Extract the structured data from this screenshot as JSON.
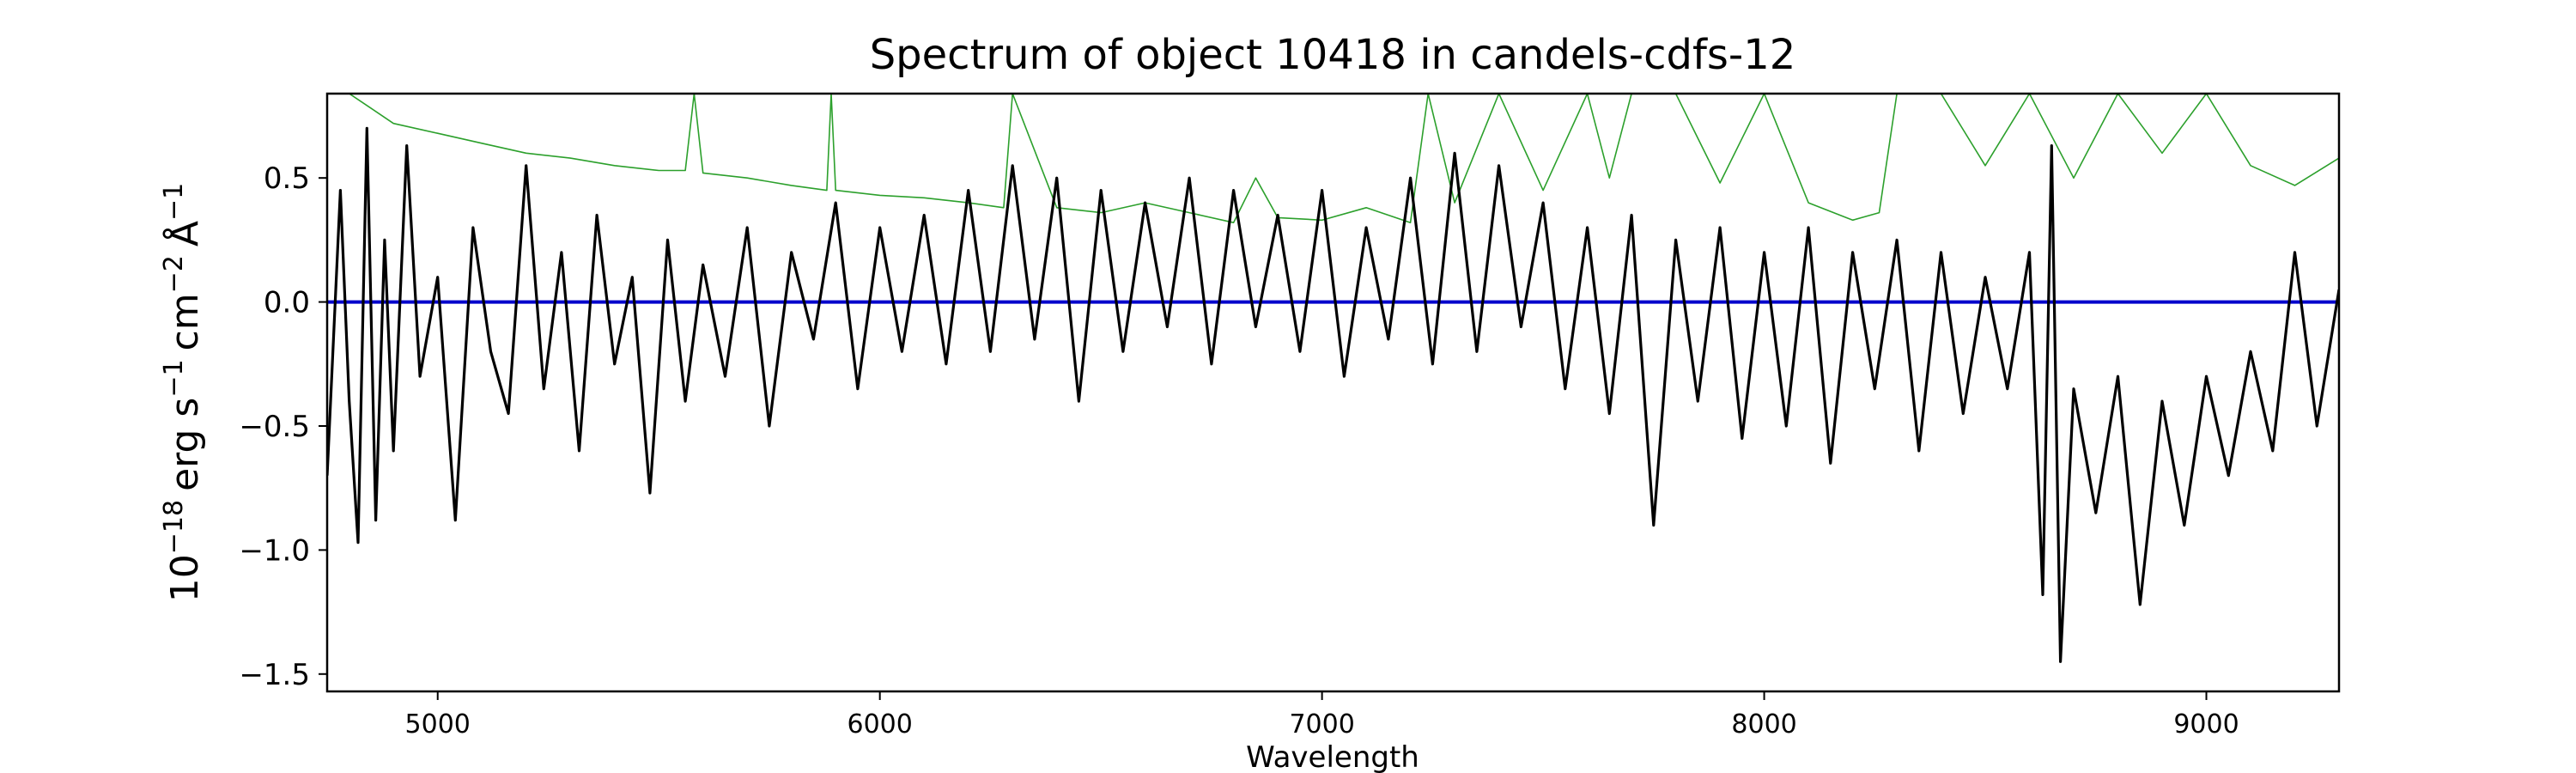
{
  "chart_data": {
    "type": "line",
    "title": "Spectrum of object 10418 in candels-cdfs-12",
    "xlabel": "Wavelength",
    "ylabel": {
      "base": "10",
      "exp": "−18",
      "unit_erg": "erg s",
      "exp_s": "−1",
      "unit_cm": "cm",
      "exp_cm": "−2",
      "unit_a": "Å",
      "exp_a": "−1"
    },
    "xlim": [
      4750,
      9300
    ],
    "ylim": [
      -1.57,
      0.84
    ],
    "xticks": [
      5000,
      6000,
      7000,
      8000,
      9000
    ],
    "xtick_labels": [
      "5000",
      "6000",
      "7000",
      "8000",
      "9000"
    ],
    "yticks": [
      -1.5,
      -1.0,
      -0.5,
      0.0,
      0.5
    ],
    "ytick_labels": [
      "−1.5",
      "−1.0",
      "−0.5",
      "0.0",
      "0.5"
    ],
    "grid": false,
    "colors": {
      "flux": "#000000",
      "error": "#2ca02c",
      "zero": "#0000cc"
    },
    "series": [
      {
        "role": "flux",
        "x": [
          4750,
          4780,
          4800,
          4820,
          4840,
          4860,
          4880,
          4900,
          4930,
          4960,
          5000,
          5040,
          5080,
          5120,
          5160,
          5200,
          5240,
          5280,
          5320,
          5360,
          5400,
          5440,
          5480,
          5520,
          5560,
          5600,
          5650,
          5700,
          5750,
          5800,
          5850,
          5900,
          5950,
          6000,
          6050,
          6100,
          6150,
          6200,
          6250,
          6300,
          6350,
          6400,
          6450,
          6500,
          6550,
          6600,
          6650,
          6700,
          6750,
          6800,
          6850,
          6900,
          6950,
          7000,
          7050,
          7100,
          7150,
          7200,
          7250,
          7300,
          7350,
          7400,
          7450,
          7500,
          7550,
          7600,
          7650,
          7700,
          7750,
          7800,
          7850,
          7900,
          7950,
          8000,
          8050,
          8100,
          8150,
          8200,
          8250,
          8300,
          8350,
          8400,
          8450,
          8500,
          8550,
          8600,
          8630,
          8650,
          8670,
          8700,
          8750,
          8800,
          8850,
          8900,
          8950,
          9000,
          9050,
          9100,
          9150,
          9200,
          9250,
          9300
        ],
        "y": [
          -0.7,
          0.45,
          -0.4,
          -0.97,
          0.7,
          -0.88,
          0.25,
          -0.6,
          0.63,
          -0.3,
          0.1,
          -0.88,
          0.3,
          -0.2,
          -0.45,
          0.55,
          -0.35,
          0.2,
          -0.6,
          0.35,
          -0.25,
          0.1,
          -0.77,
          0.25,
          -0.4,
          0.15,
          -0.3,
          0.3,
          -0.5,
          0.2,
          -0.15,
          0.4,
          -0.35,
          0.3,
          -0.2,
          0.35,
          -0.25,
          0.45,
          -0.2,
          0.55,
          -0.15,
          0.5,
          -0.4,
          0.45,
          -0.2,
          0.4,
          -0.1,
          0.5,
          -0.25,
          0.45,
          -0.1,
          0.35,
          -0.2,
          0.45,
          -0.3,
          0.3,
          -0.15,
          0.5,
          -0.25,
          0.6,
          -0.2,
          0.55,
          -0.1,
          0.4,
          -0.35,
          0.3,
          -0.45,
          0.35,
          -0.9,
          0.25,
          -0.4,
          0.3,
          -0.55,
          0.2,
          -0.5,
          0.3,
          -0.65,
          0.2,
          -0.35,
          0.25,
          -0.6,
          0.2,
          -0.45,
          0.1,
          -0.35,
          0.2,
          -1.18,
          0.63,
          -1.45,
          -0.35,
          -0.85,
          -0.3,
          -1.22,
          -0.4,
          -0.9,
          -0.3,
          -0.7,
          -0.2,
          -0.6,
          0.2,
          -0.5,
          0.05
        ]
      },
      {
        "role": "error",
        "x": [
          4750,
          4800,
          4850,
          4900,
          5000,
          5100,
          5200,
          5300,
          5400,
          5500,
          5560,
          5580,
          5600,
          5700,
          5800,
          5880,
          5890,
          5900,
          6000,
          6100,
          6200,
          6280,
          6300,
          6400,
          6500,
          6600,
          6700,
          6800,
          6850,
          6900,
          7000,
          7100,
          7200,
          7240,
          7300,
          7400,
          7500,
          7600,
          7650,
          7700,
          7800,
          7900,
          8000,
          8100,
          8200,
          8260,
          8300,
          8400,
          8500,
          8600,
          8700,
          8800,
          8900,
          9000,
          9100,
          9200,
          9300
        ],
        "y": [
          0.84,
          0.84,
          0.78,
          0.72,
          0.68,
          0.64,
          0.6,
          0.58,
          0.55,
          0.53,
          0.53,
          0.84,
          0.52,
          0.5,
          0.47,
          0.45,
          0.84,
          0.45,
          0.43,
          0.42,
          0.4,
          0.38,
          0.84,
          0.38,
          0.36,
          0.4,
          0.36,
          0.32,
          0.5,
          0.34,
          0.33,
          0.38,
          0.32,
          0.84,
          0.4,
          0.84,
          0.45,
          0.84,
          0.5,
          0.84,
          0.84,
          0.48,
          0.84,
          0.4,
          0.33,
          0.36,
          0.84,
          0.84,
          0.55,
          0.84,
          0.5,
          0.84,
          0.6,
          0.84,
          0.55,
          0.47,
          0.58
        ]
      },
      {
        "role": "zero",
        "x": [
          4750,
          9300
        ],
        "y": [
          0,
          0
        ]
      }
    ]
  }
}
